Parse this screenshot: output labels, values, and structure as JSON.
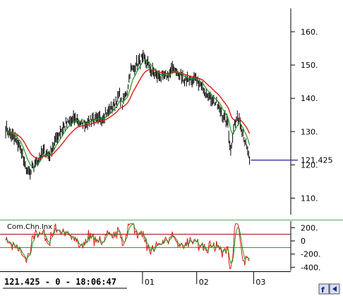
{
  "chart_data": [
    {
      "type": "line",
      "panel": "price",
      "ylim": [
        105,
        167
      ],
      "y_ticks": [
        {
          "value": 160,
          "label": "160."
        },
        {
          "value": 150,
          "label": "150."
        },
        {
          "value": 140,
          "label": "140."
        },
        {
          "value": 130,
          "label": "130."
        },
        {
          "value": 120,
          "label": "120."
        },
        {
          "value": 110,
          "label": "110."
        }
      ],
      "last_value_label": "121.425",
      "last_value": 121.425,
      "colors": {
        "price": "#000000",
        "ma_fast": "#1a9a1a",
        "ma_slow": "#e01818",
        "last_marker": "#2020a0",
        "axis": "#000000"
      },
      "x_range": [
        0,
        100
      ],
      "price_anchors": [
        [
          0,
          131
        ],
        [
          2,
          129
        ],
        [
          4,
          127
        ],
        [
          5,
          126
        ],
        [
          6,
          124
        ],
        [
          7,
          120
        ],
        [
          9,
          117
        ],
        [
          10,
          119
        ],
        [
          12,
          122
        ],
        [
          14,
          124
        ],
        [
          16,
          123
        ],
        [
          18,
          127
        ],
        [
          20,
          130
        ],
        [
          22,
          132
        ],
        [
          24,
          133
        ],
        [
          26,
          134
        ],
        [
          28,
          132
        ],
        [
          30,
          133
        ],
        [
          32,
          134
        ],
        [
          34,
          133
        ],
        [
          36,
          135
        ],
        [
          38,
          136
        ],
        [
          40,
          138
        ],
        [
          42,
          141
        ],
        [
          43,
          138
        ],
        [
          45,
          143
        ],
        [
          46,
          148
        ],
        [
          48,
          150
        ],
        [
          50,
          152
        ],
        [
          52,
          151
        ],
        [
          54,
          148
        ],
        [
          56,
          147
        ],
        [
          58,
          146
        ],
        [
          60,
          147
        ],
        [
          62,
          149
        ],
        [
          64,
          147
        ],
        [
          66,
          146
        ],
        [
          68,
          146
        ],
        [
          70,
          145
        ],
        [
          72,
          144
        ],
        [
          74,
          142
        ],
        [
          76,
          140
        ],
        [
          78,
          138
        ],
        [
          80,
          135
        ],
        [
          82,
          132
        ],
        [
          83,
          124
        ],
        [
          84,
          131
        ],
        [
          86,
          135
        ],
        [
          87,
          131
        ],
        [
          88,
          128
        ],
        [
          89,
          125
        ],
        [
          90,
          121.4
        ]
      ]
    },
    {
      "type": "line",
      "panel": "indicator",
      "title": "Com.Chn.Inx",
      "ylim": [
        -450,
        300
      ],
      "y_ticks": [
        {
          "value": 200,
          "label": "200."
        },
        {
          "value": 0,
          "label": "0"
        },
        {
          "value": -200,
          "label": "-200."
        },
        {
          "value": -400,
          "label": "-400."
        }
      ],
      "hlines": [
        100,
        -100
      ],
      "colors": {
        "cci": "#e01818",
        "cci_signal": "#1a9a1a",
        "hline_upper": "#a00000",
        "hline_lower": "#1a9a1a"
      },
      "x_range": [
        0,
        100
      ]
    }
  ],
  "date_axis": {
    "labels": [
      {
        "x": 50.5,
        "label": "01"
      },
      {
        "x": 70.5,
        "label": "02"
      },
      {
        "x": 91.5,
        "label": "03"
      }
    ]
  },
  "status_bar": {
    "text": "121.425 - 0 - 18:06:47"
  }
}
